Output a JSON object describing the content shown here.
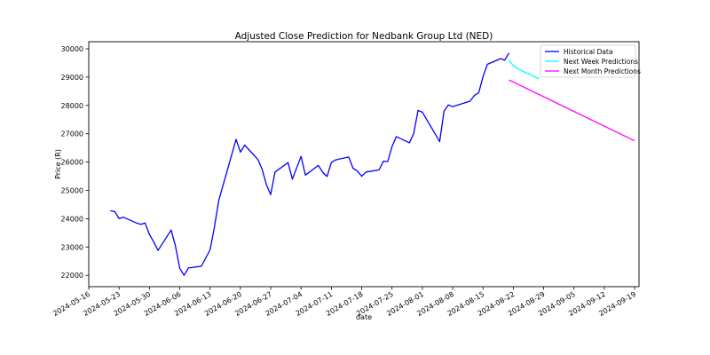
{
  "chart_data": {
    "type": "line",
    "title": "Adjusted Close Prediction for Nedbank Group Ltd (NED)",
    "xlabel": "date",
    "ylabel": "Price (R)",
    "ylim": [
      21600,
      30250
    ],
    "yticks": [
      22000,
      23000,
      24000,
      25000,
      26000,
      27000,
      28000,
      29000,
      30000
    ],
    "xlim": [
      "2024-05-16",
      "2024-09-20"
    ],
    "xticks": [
      "2024-05-16",
      "2024-05-23",
      "2024-05-30",
      "2024-06-06",
      "2024-06-13",
      "2024-06-20",
      "2024-06-27",
      "2024-07-04",
      "2024-07-11",
      "2024-07-18",
      "2024-07-25",
      "2024-08-01",
      "2024-08-08",
      "2024-08-15",
      "2024-08-22",
      "2024-08-29",
      "2024-09-05",
      "2024-09-12",
      "2024-09-19"
    ],
    "grid": false,
    "legend_position": "upper right",
    "series": [
      {
        "name": "Historical Data",
        "color": "#0000ff",
        "points": [
          [
            "2024-05-21",
            24280
          ],
          [
            "2024-05-22",
            24250
          ],
          [
            "2024-05-23",
            24000
          ],
          [
            "2024-05-24",
            24050
          ],
          [
            "2024-05-27",
            23850
          ],
          [
            "2024-05-28",
            23800
          ],
          [
            "2024-05-29",
            23850
          ],
          [
            "2024-05-30",
            23450
          ],
          [
            "2024-05-31",
            23180
          ],
          [
            "2024-06-01",
            22880
          ],
          [
            "2024-06-04",
            23600
          ],
          [
            "2024-06-05",
            23050
          ],
          [
            "2024-06-06",
            22250
          ],
          [
            "2024-06-07",
            22000
          ],
          [
            "2024-06-08",
            22260
          ],
          [
            "2024-06-11",
            22320
          ],
          [
            "2024-06-13",
            22900
          ],
          [
            "2024-06-14",
            23700
          ],
          [
            "2024-06-15",
            24650
          ],
          [
            "2024-06-19",
            26800
          ],
          [
            "2024-06-20",
            26350
          ],
          [
            "2024-06-21",
            26600
          ],
          [
            "2024-06-24",
            26100
          ],
          [
            "2024-06-25",
            25750
          ],
          [
            "2024-06-26",
            25200
          ],
          [
            "2024-06-27",
            24850
          ],
          [
            "2024-06-28",
            25650
          ],
          [
            "2024-07-01",
            25980
          ],
          [
            "2024-07-02",
            25400
          ],
          [
            "2024-07-04",
            26200
          ],
          [
            "2024-07-05",
            25540
          ],
          [
            "2024-07-08",
            25880
          ],
          [
            "2024-07-09",
            25640
          ],
          [
            "2024-07-10",
            25490
          ],
          [
            "2024-07-11",
            25990
          ],
          [
            "2024-07-12",
            26080
          ],
          [
            "2024-07-15",
            26180
          ],
          [
            "2024-07-16",
            25780
          ],
          [
            "2024-07-17",
            25680
          ],
          [
            "2024-07-18",
            25500
          ],
          [
            "2024-07-19",
            25650
          ],
          [
            "2024-07-22",
            25720
          ],
          [
            "2024-07-23",
            26030
          ],
          [
            "2024-07-24",
            26020
          ],
          [
            "2024-07-25",
            26550
          ],
          [
            "2024-07-26",
            26900
          ],
          [
            "2024-07-29",
            26680
          ],
          [
            "2024-07-30",
            27000
          ],
          [
            "2024-07-31",
            27820
          ],
          [
            "2024-08-01",
            27760
          ],
          [
            "2024-08-05",
            26720
          ],
          [
            "2024-08-06",
            27800
          ],
          [
            "2024-08-07",
            28020
          ],
          [
            "2024-08-08",
            27960
          ],
          [
            "2024-08-12",
            28150
          ],
          [
            "2024-08-13",
            28350
          ],
          [
            "2024-08-14",
            28450
          ],
          [
            "2024-08-15",
            29020
          ],
          [
            "2024-08-16",
            29450
          ],
          [
            "2024-08-19",
            29650
          ],
          [
            "2024-08-20",
            29600
          ],
          [
            "2024-08-21",
            29850
          ]
        ]
      },
      {
        "name": "Next Week Predictions",
        "color": "#00ffff",
        "points": [
          [
            "2024-08-21",
            29600
          ],
          [
            "2024-08-22",
            29400
          ],
          [
            "2024-08-23",
            29300
          ],
          [
            "2024-08-24",
            29220
          ],
          [
            "2024-08-25",
            29150
          ],
          [
            "2024-08-26",
            29080
          ],
          [
            "2024-08-27",
            29000
          ],
          [
            "2024-08-28",
            28950
          ]
        ]
      },
      {
        "name": "Next Month Predictions",
        "color": "#ff00ff",
        "points": [
          [
            "2024-08-21",
            28900
          ],
          [
            "2024-09-19",
            26750
          ]
        ]
      }
    ]
  }
}
